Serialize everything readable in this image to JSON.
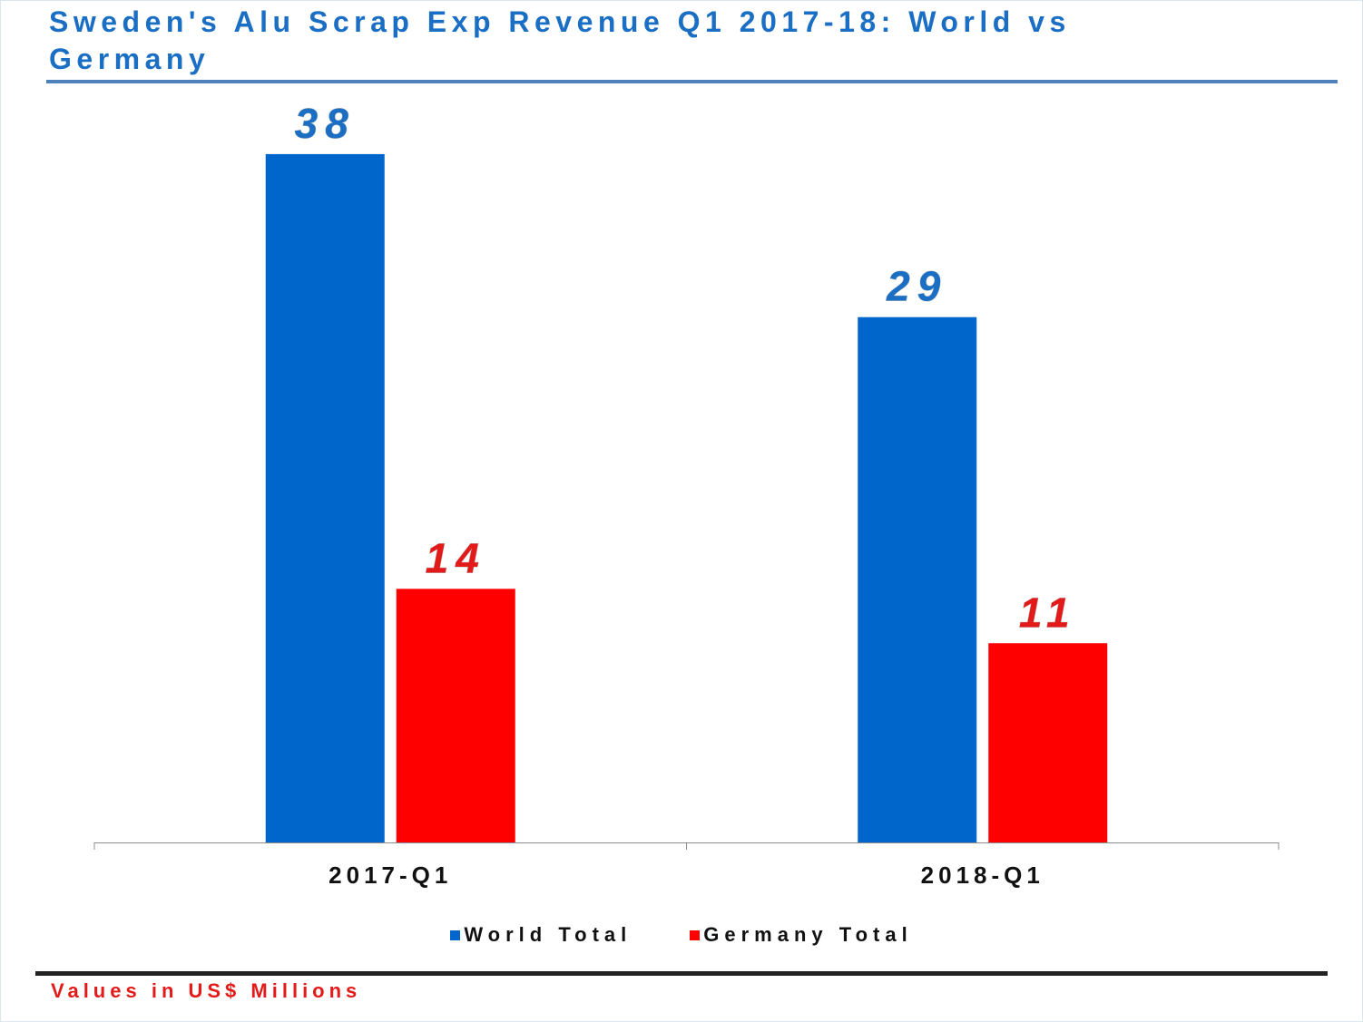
{
  "chart_data": {
    "type": "bar",
    "title": "Sweden's Alu Scrap Exp Revenue Q1 2017-18: World vs Germany",
    "categories": [
      "2017-Q1",
      "2018-Q1"
    ],
    "series": [
      {
        "name": "World Total",
        "values": [
          38,
          29
        ],
        "color": "#0066cc"
      },
      {
        "name": "Germany Total",
        "values": [
          14,
          11
        ],
        "color": "#ff0000"
      }
    ],
    "data_label_colors": [
      "#1a6fc4",
      "#e21a1a"
    ],
    "xlabel": "",
    "ylabel": "",
    "ylim": [
      0,
      41
    ],
    "grid": false,
    "legend_position": "bottom",
    "footnote": "Values in US$ Millions"
  }
}
